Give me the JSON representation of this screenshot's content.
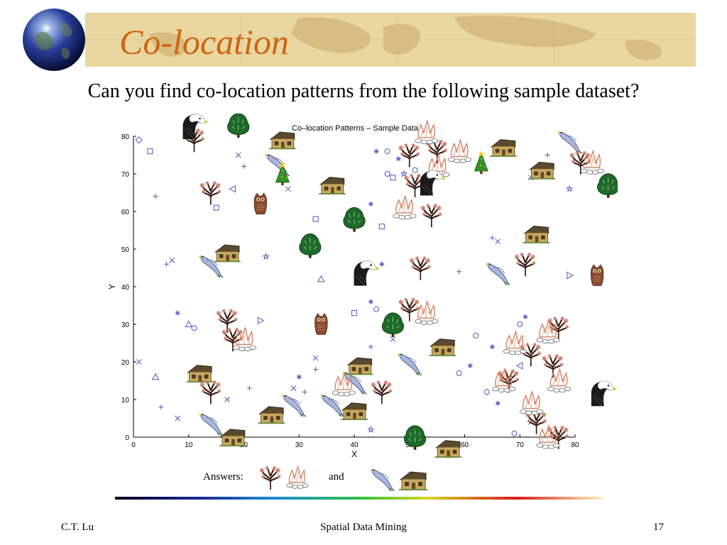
{
  "slide": {
    "title": "Co-location",
    "subtitle": "Can you find co-location patterns from the following sample dataset?",
    "answers_label": "Answers:",
    "answers_and": "and",
    "answers": [
      {
        "pair": [
          "tree-icon",
          "fire-icon"
        ]
      },
      {
        "pair": [
          "bird-icon",
          "house-icon"
        ]
      }
    ]
  },
  "footer": {
    "author": "C.T. Lu",
    "course": "Spatial Data Mining",
    "page_number": "17"
  },
  "colors": {
    "banner": "#ead6a1",
    "title": "#cc6611",
    "marker": "#5058c0"
  },
  "chart_data": {
    "type": "scatter",
    "title": "Co–location Patterns – Sample Data",
    "xlabel": "X",
    "ylabel": "Y",
    "xlim": [
      0,
      80
    ],
    "ylim": [
      0,
      80
    ],
    "xticks": [
      0,
      10,
      20,
      30,
      40,
      50,
      60,
      70,
      80
    ],
    "yticks": [
      0,
      10,
      20,
      30,
      40,
      50,
      60,
      70,
      80
    ],
    "grid": false,
    "markers": [
      {
        "m": "diamond",
        "x": 1,
        "y": 79
      },
      {
        "m": "square",
        "x": 3,
        "y": 76
      },
      {
        "m": "x",
        "x": 19,
        "y": 75
      },
      {
        "m": "plus",
        "x": 20,
        "y": 72
      },
      {
        "m": "plus",
        "x": 4,
        "y": 64
      },
      {
        "m": "triangle-left",
        "x": 18,
        "y": 66
      },
      {
        "m": "square",
        "x": 15,
        "y": 61
      },
      {
        "m": "x",
        "x": 28,
        "y": 66
      },
      {
        "m": "asterisk",
        "x": 44,
        "y": 76
      },
      {
        "m": "circle",
        "x": 46,
        "y": 76
      },
      {
        "m": "asterisk",
        "x": 48,
        "y": 74
      },
      {
        "m": "circle",
        "x": 46,
        "y": 70
      },
      {
        "m": "square",
        "x": 47,
        "y": 69
      },
      {
        "m": "star",
        "x": 49,
        "y": 70
      },
      {
        "m": "circle",
        "x": 51,
        "y": 71
      },
      {
        "m": "asterisk",
        "x": 43,
        "y": 62
      },
      {
        "m": "square",
        "x": 33,
        "y": 58
      },
      {
        "m": "square",
        "x": 45,
        "y": 56
      },
      {
        "m": "plus",
        "x": 75,
        "y": 75
      },
      {
        "m": "x",
        "x": 72,
        "y": 69
      },
      {
        "m": "star",
        "x": 79,
        "y": 66
      },
      {
        "m": "plus",
        "x": 6,
        "y": 46
      },
      {
        "m": "x",
        "x": 7,
        "y": 47
      },
      {
        "m": "star",
        "x": 24,
        "y": 48
      },
      {
        "m": "triangle-up",
        "x": 34,
        "y": 42
      },
      {
        "m": "asterisk",
        "x": 45,
        "y": 46
      },
      {
        "m": "plus",
        "x": 59,
        "y": 44
      },
      {
        "m": "plus",
        "x": 65,
        "y": 53
      },
      {
        "m": "x",
        "x": 66,
        "y": 52
      },
      {
        "m": "triangle-right",
        "x": 79,
        "y": 43
      },
      {
        "m": "asterisk",
        "x": 8,
        "y": 33
      },
      {
        "m": "triangle-up",
        "x": 10,
        "y": 30
      },
      {
        "m": "circle",
        "x": 11,
        "y": 29
      },
      {
        "m": "triangle-right",
        "x": 23,
        "y": 31
      },
      {
        "m": "square",
        "x": 40,
        "y": 33
      },
      {
        "m": "asterisk",
        "x": 43,
        "y": 36
      },
      {
        "m": "circle",
        "x": 44,
        "y": 34
      },
      {
        "m": "x",
        "x": 47,
        "y": 26
      },
      {
        "m": "plus",
        "x": 43,
        "y": 24
      },
      {
        "m": "circle",
        "x": 62,
        "y": 27
      },
      {
        "m": "asterisk",
        "x": 65,
        "y": 24
      },
      {
        "m": "circle",
        "x": 70,
        "y": 30
      },
      {
        "m": "asterisk",
        "x": 71,
        "y": 32
      },
      {
        "m": "x",
        "x": 1,
        "y": 20
      },
      {
        "m": "triangle-up",
        "x": 4,
        "y": 16
      },
      {
        "m": "plus",
        "x": 5,
        "y": 8
      },
      {
        "m": "x",
        "x": 8,
        "y": 5
      },
      {
        "m": "x",
        "x": 17,
        "y": 10
      },
      {
        "m": "plus",
        "x": 21,
        "y": 13
      },
      {
        "m": "x",
        "x": 29,
        "y": 13
      },
      {
        "m": "plus",
        "x": 31,
        "y": 12
      },
      {
        "m": "asterisk",
        "x": 30,
        "y": 16
      },
      {
        "m": "x",
        "x": 33,
        "y": 21
      },
      {
        "m": "plus",
        "x": 33,
        "y": 18
      },
      {
        "m": "star",
        "x": 43,
        "y": 2
      },
      {
        "m": "circle",
        "x": 59,
        "y": 17
      },
      {
        "m": "asterisk",
        "x": 61,
        "y": 19
      },
      {
        "m": "circle",
        "x": 64,
        "y": 12
      },
      {
        "m": "asterisk",
        "x": 66,
        "y": 9
      },
      {
        "m": "triangle-left",
        "x": 70,
        "y": 19
      },
      {
        "m": "circle",
        "x": 69,
        "y": 1
      },
      {
        "m": "x",
        "x": 72,
        "y": 4
      }
    ],
    "icons": [
      {
        "kind": "bird",
        "x": 26,
        "y": 73
      },
      {
        "kind": "bird",
        "x": 14,
        "y": 46
      },
      {
        "kind": "bird",
        "x": 66,
        "y": 44
      },
      {
        "kind": "bird",
        "x": 79,
        "y": 79
      },
      {
        "kind": "bird",
        "x": 50,
        "y": 20
      },
      {
        "kind": "bird",
        "x": 40,
        "y": 15
      },
      {
        "kind": "bird",
        "x": 29,
        "y": 9
      },
      {
        "kind": "bird",
        "x": 36,
        "y": 9
      },
      {
        "kind": "bird",
        "x": 14,
        "y": 4
      },
      {
        "kind": "house",
        "x": 27,
        "y": 79
      },
      {
        "kind": "house",
        "x": 36,
        "y": 67
      },
      {
        "kind": "house",
        "x": 17,
        "y": 49
      },
      {
        "kind": "house",
        "x": 67,
        "y": 77
      },
      {
        "kind": "house",
        "x": 74,
        "y": 71
      },
      {
        "kind": "house",
        "x": 73,
        "y": 54
      },
      {
        "kind": "house",
        "x": 56,
        "y": 24
      },
      {
        "kind": "house",
        "x": 12,
        "y": 17
      },
      {
        "kind": "house",
        "x": 41,
        "y": 19
      },
      {
        "kind": "house",
        "x": 25,
        "y": 6
      },
      {
        "kind": "house",
        "x": 40,
        "y": 7
      },
      {
        "kind": "house",
        "x": 18,
        "y": 0
      },
      {
        "kind": "house",
        "x": 57,
        "y": -3
      },
      {
        "kind": "tree",
        "x": 11,
        "y": 79
      },
      {
        "kind": "tree",
        "x": 14,
        "y": 65
      },
      {
        "kind": "tree",
        "x": 50,
        "y": 75
      },
      {
        "kind": "tree",
        "x": 55,
        "y": 76
      },
      {
        "kind": "tree",
        "x": 51,
        "y": 67
      },
      {
        "kind": "tree",
        "x": 54,
        "y": 59
      },
      {
        "kind": "tree",
        "x": 52,
        "y": 45
      },
      {
        "kind": "tree",
        "x": 71,
        "y": 46
      },
      {
        "kind": "tree",
        "x": 81,
        "y": 73
      },
      {
        "kind": "tree",
        "x": 50,
        "y": 34
      },
      {
        "kind": "tree",
        "x": 17,
        "y": 31
      },
      {
        "kind": "tree",
        "x": 18,
        "y": 26
      },
      {
        "kind": "tree",
        "x": 77,
        "y": 29
      },
      {
        "kind": "tree",
        "x": 72,
        "y": 22
      },
      {
        "kind": "tree",
        "x": 76,
        "y": 19
      },
      {
        "kind": "tree",
        "x": 68,
        "y": 15
      },
      {
        "kind": "tree",
        "x": 14,
        "y": 12
      },
      {
        "kind": "tree",
        "x": 45,
        "y": 12
      },
      {
        "kind": "tree",
        "x": 73,
        "y": 4
      },
      {
        "kind": "tree",
        "x": 77,
        "y": 0
      },
      {
        "kind": "fire",
        "x": 53,
        "y": 81
      },
      {
        "kind": "fire",
        "x": 59,
        "y": 76
      },
      {
        "kind": "fire",
        "x": 55,
        "y": 72
      },
      {
        "kind": "fire",
        "x": 83,
        "y": 73
      },
      {
        "kind": "fire",
        "x": 49,
        "y": 61
      },
      {
        "kind": "fire",
        "x": 53,
        "y": 33
      },
      {
        "kind": "fire",
        "x": 20,
        "y": 26
      },
      {
        "kind": "fire",
        "x": 69,
        "y": 25
      },
      {
        "kind": "fire",
        "x": 75,
        "y": 28
      },
      {
        "kind": "fire",
        "x": 67,
        "y": 15
      },
      {
        "kind": "fire",
        "x": 77,
        "y": 15
      },
      {
        "kind": "fire",
        "x": 38,
        "y": 14
      },
      {
        "kind": "fire",
        "x": 72,
        "y": 9
      },
      {
        "kind": "fire",
        "x": 75,
        "y": 0
      },
      {
        "kind": "eagle",
        "x": 11,
        "y": 83
      },
      {
        "kind": "eagle",
        "x": 54,
        "y": 68
      },
      {
        "kind": "eagle",
        "x": 42,
        "y": 44
      },
      {
        "kind": "eagle",
        "x": 85,
        "y": 12
      },
      {
        "kind": "bush",
        "x": 19,
        "y": 83
      },
      {
        "kind": "bush",
        "x": 40,
        "y": 58
      },
      {
        "kind": "bush",
        "x": 32,
        "y": 51
      },
      {
        "kind": "bush",
        "x": 86,
        "y": 67
      },
      {
        "kind": "bush",
        "x": 47,
        "y": 30
      },
      {
        "kind": "bush",
        "x": 51,
        "y": 0
      },
      {
        "kind": "owl",
        "x": 23,
        "y": 62
      },
      {
        "kind": "owl",
        "x": 34,
        "y": 30
      },
      {
        "kind": "owl",
        "x": 84,
        "y": 43
      },
      {
        "kind": "xmas",
        "x": 27,
        "y": 70
      },
      {
        "kind": "xmas",
        "x": 63,
        "y": 73
      }
    ]
  }
}
